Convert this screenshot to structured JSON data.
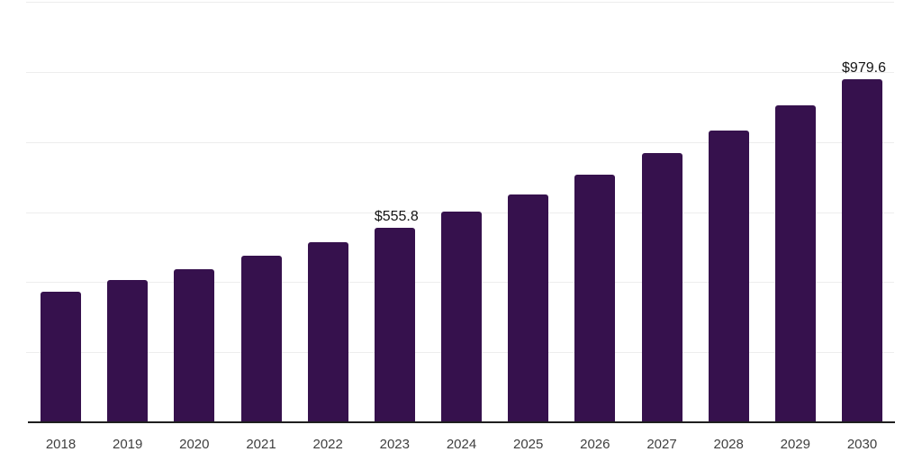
{
  "chart_data": {
    "type": "bar",
    "title": "",
    "xlabel": "",
    "ylabel": "",
    "categories": [
      "2018",
      "2019",
      "2020",
      "2021",
      "2022",
      "2023",
      "2024",
      "2025",
      "2026",
      "2027",
      "2028",
      "2029",
      "2030"
    ],
    "values": [
      372.9,
      406.4,
      437.2,
      475.8,
      514.4,
      555.8,
      601.8,
      650.7,
      707.3,
      769.0,
      833.3,
      905.3,
      979.6
    ],
    "value_labels": [
      "",
      "",
      "",
      "",
      "",
      "$555.8",
      "",
      "",
      "",
      "",
      "",
      "",
      "$979.6"
    ],
    "ylim": [
      0,
      1200
    ],
    "gridline_values": [
      200,
      400,
      600,
      800,
      1000,
      1200
    ],
    "grid": "horizontal",
    "legend": "none",
    "y_tick_labels_shown": false
  },
  "colors": {
    "background": "#ffffff",
    "bar": "#36114d",
    "gridline": "#ededed",
    "axis_line": "#1f1f1f",
    "tick_label": "#3f3f3f",
    "data_label": "#141414"
  }
}
